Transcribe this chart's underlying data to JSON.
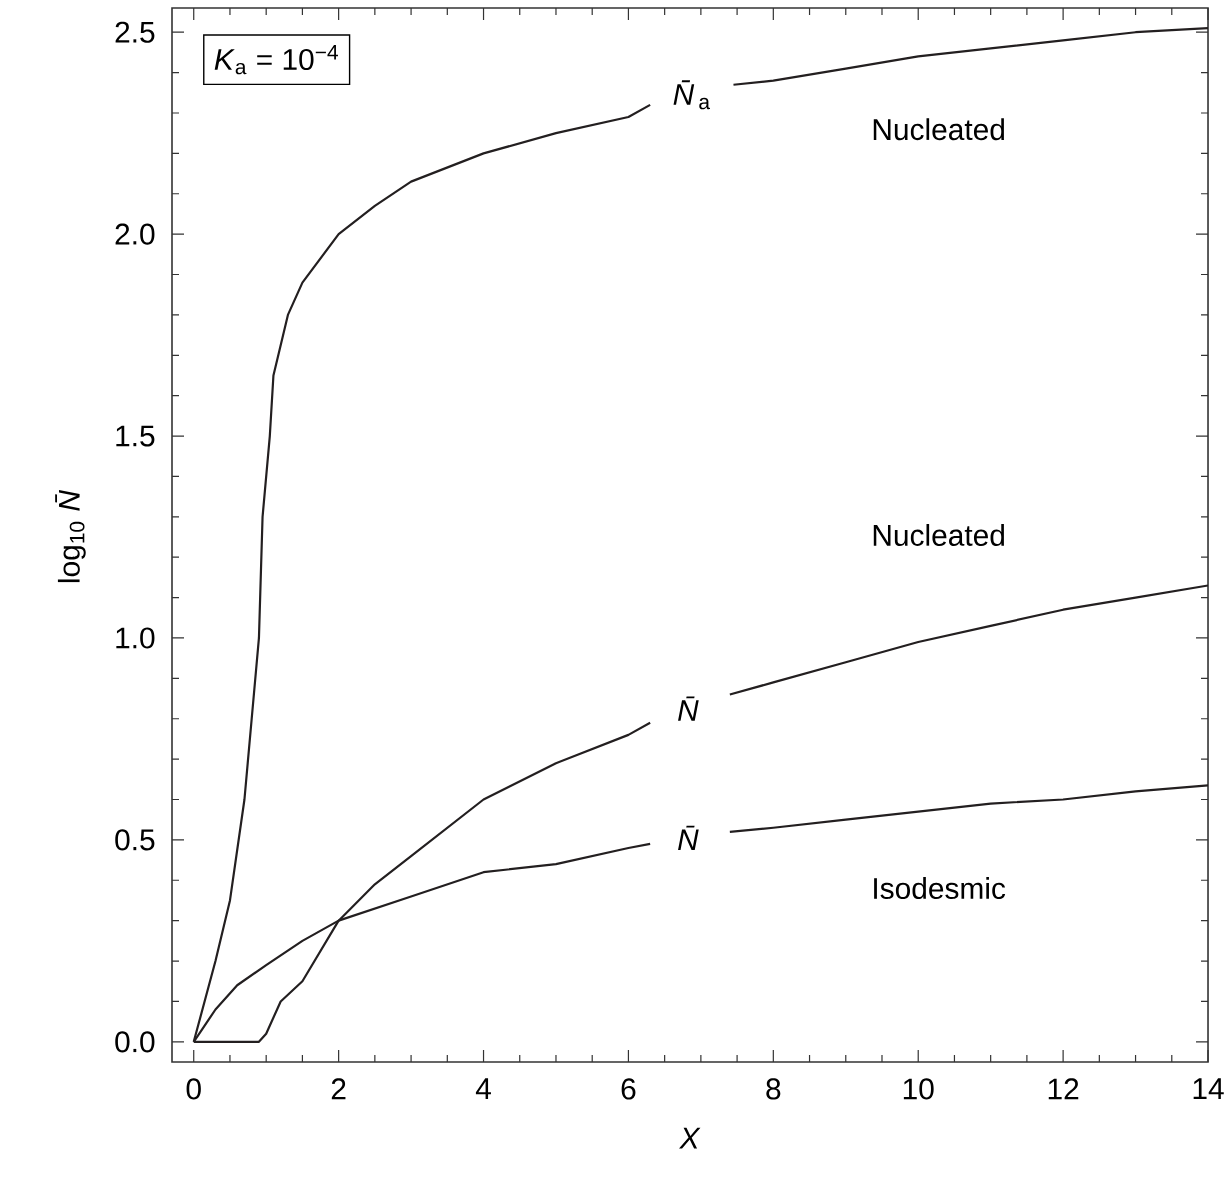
{
  "chart_data": {
    "type": "line",
    "xlabel": "*X*",
    "ylabel": "log$_{10}$ *N̄*",
    "xlim": [
      -0.3,
      14
    ],
    "ylim": [
      -0.05,
      2.56
    ],
    "xticks": [
      0,
      2,
      4,
      6,
      8,
      10,
      12,
      14
    ],
    "yticks": [
      {
        "value": 0,
        "label": "0.0"
      },
      {
        "value": 0.5,
        "label": "0.5"
      },
      {
        "value": 1,
        "label": "1.0"
      },
      {
        "value": 1.5,
        "label": "1.5"
      },
      {
        "value": 2,
        "label": "2.0"
      },
      {
        "value": 2.5,
        "label": "2.5"
      }
    ],
    "grid": false,
    "marker": "none",
    "line_style": "solid",
    "series": [
      {
        "name": "*N̄*$_{a}$",
        "color": "#231f20",
        "x": [
          0,
          0.3,
          0.5,
          0.7,
          0.8,
          0.9,
          0.95,
          1.05,
          1.1,
          1.3,
          1.5,
          2,
          2.5,
          3,
          4,
          5,
          6,
          6.3,
          6.8,
          7.45,
          8,
          9,
          10,
          11,
          12,
          13,
          14
        ],
        "values": [
          0,
          0.2,
          0.35,
          0.6,
          0.8,
          1.0,
          1.3,
          1.5,
          1.65,
          1.8,
          1.88,
          2.0,
          2.07,
          2.13,
          2.2,
          2.25,
          2.29,
          2.32,
          null,
          2.37,
          2.38,
          2.41,
          2.44,
          2.46,
          2.48,
          2.5,
          2.51
        ]
      },
      {
        "name": "*N̄*",
        "color": "#231f20",
        "x": [
          0,
          0.9,
          1,
          1.2,
          1.5,
          2,
          2.5,
          3,
          4,
          5,
          6,
          6.3,
          6.8,
          7.4,
          8,
          9,
          10,
          11,
          12,
          13,
          14
        ],
        "values": [
          0,
          0,
          0.02,
          0.1,
          0.15,
          0.3,
          0.39,
          0.46,
          0.6,
          0.69,
          0.76,
          0.79,
          null,
          0.86,
          0.89,
          0.94,
          0.99,
          1.03,
          1.07,
          1.1,
          1.13
        ]
      },
      {
        "name": "*N̄*",
        "color": "#231f20",
        "x": [
          0,
          0.3,
          0.6,
          1,
          1.5,
          2,
          3,
          4,
          5,
          6,
          6.3,
          6.8,
          7.4,
          8,
          9,
          10,
          11,
          12,
          13,
          14
        ],
        "values": [
          0,
          0.08,
          0.14,
          0.19,
          0.25,
          0.3,
          0.36,
          0.42,
          0.44,
          0.48,
          0.49,
          null,
          0.52,
          0.53,
          0.55,
          0.57,
          0.59,
          0.6,
          0.62,
          0.635
        ]
      }
    ],
    "annotations": [
      "*K*$_{a}$ = 10$^{−4}$",
      "Nucleated",
      "Nucleated",
      "Isodesmic"
    ]
  }
}
